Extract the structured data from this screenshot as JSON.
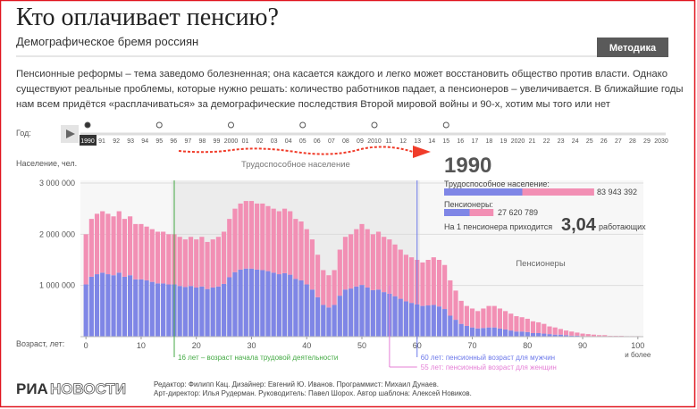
{
  "header": {
    "title": "Кто оплачивает пенсию?",
    "subtitle": "Демографическое бремя россиян",
    "button": "Методика"
  },
  "intro": [
    "Пенсионные реформы – тема заведомо болезненная; она касается каждого и легко может восстановить общество против власти. Однако",
    "существуют реальные проблемы, которые нужно решать: количество работников падает, а пенсионеров – увеличивается. В ближайшие годы",
    "нам всем придётся «расплачиваться» за демографические последствия Второй мировой войны и 90-х, хотим мы того или нет"
  ],
  "timeline": {
    "label": "Год:",
    "selected": 0,
    "years": [
      "1990",
      "91",
      "92",
      "93",
      "94",
      "95",
      "96",
      "97",
      "98",
      "99",
      "2000",
      "01",
      "02",
      "03",
      "04",
      "05",
      "06",
      "07",
      "08",
      "09",
      "2010",
      "11",
      "12",
      "13",
      "14",
      "15",
      "16",
      "17",
      "18",
      "19",
      "2020",
      "21",
      "22",
      "23",
      "24",
      "25",
      "26",
      "27",
      "28",
      "29",
      "2030"
    ]
  },
  "stats": {
    "year": "1990",
    "working_label": "Трудоспособное население:",
    "working": {
      "value": 83943392,
      "label": "83 943 392"
    },
    "pensioners_label": "Пенсионеры:",
    "pensioners": {
      "value": 27620789,
      "label": "27 620 789"
    },
    "ratio_prefix": "На 1 пенсионера приходится",
    "ratio": {
      "value": 3.04,
      "label": "3,04"
    },
    "ratio_suffix": "работающих"
  },
  "chart_data": {
    "type": "bar",
    "stacked": true,
    "y_label": "Население, чел.",
    "x_label": "Возраст, лет:",
    "x": [
      0,
      1,
      2,
      3,
      4,
      5,
      6,
      7,
      8,
      9,
      10,
      11,
      12,
      13,
      14,
      15,
      16,
      17,
      18,
      19,
      20,
      21,
      22,
      23,
      24,
      25,
      26,
      27,
      28,
      29,
      30,
      31,
      32,
      33,
      34,
      35,
      36,
      37,
      38,
      39,
      40,
      41,
      42,
      43,
      44,
      45,
      46,
      47,
      48,
      49,
      50,
      51,
      52,
      53,
      54,
      55,
      56,
      57,
      58,
      59,
      60,
      61,
      62,
      63,
      64,
      65,
      66,
      67,
      68,
      69,
      70,
      71,
      72,
      73,
      74,
      75,
      76,
      77,
      78,
      79,
      80,
      81,
      82,
      83,
      84,
      85,
      86,
      87,
      88,
      89,
      90,
      91,
      92,
      93,
      94,
      95,
      96,
      97,
      98,
      99,
      100
    ],
    "xlim": [
      -1,
      101
    ],
    "xticks": [
      0,
      10,
      20,
      30,
      40,
      50,
      60,
      70,
      80,
      90,
      100
    ],
    "xtick_note": "и более",
    "ylim": [
      0,
      3000000
    ],
    "yticks": [
      {
        "value": 1000000,
        "label": "1 000 000"
      },
      {
        "value": 2000000,
        "label": "2 000 000"
      },
      {
        "value": 3000000,
        "label": "3 000 000"
      }
    ],
    "series": [
      {
        "color": "#7f86e6",
        "values": [
          1020000,
          1170000,
          1220000,
          1250000,
          1220000,
          1200000,
          1250000,
          1170000,
          1200000,
          1120000,
          1120000,
          1100000,
          1070000,
          1040000,
          1040000,
          1020000,
          1020000,
          990000,
          970000,
          990000,
          960000,
          980000,
          930000,
          960000,
          980000,
          1030000,
          1160000,
          1260000,
          1310000,
          1330000,
          1330000,
          1310000,
          1300000,
          1280000,
          1250000,
          1220000,
          1240000,
          1210000,
          1130000,
          1100000,
          1020000,
          920000,
          770000,
          620000,
          570000,
          620000,
          800000,
          920000,
          940000,
          980000,
          1010000,
          960000,
          910000,
          920000,
          870000,
          840000,
          790000,
          740000,
          690000,
          660000,
          630000,
          600000,
          610000,
          620000,
          590000,
          540000,
          410000,
          330000,
          250000,
          210000,
          180000,
          160000,
          170000,
          180000,
          180000,
          160000,
          140000,
          120000,
          100000,
          100000,
          90000,
          70000,
          70000,
          60000,
          50000,
          40000,
          40000,
          30000,
          20000,
          20000,
          10000,
          10000,
          10000,
          10000,
          10000,
          5000,
          5000,
          5000,
          5000,
          5000,
          5000
        ]
      },
      {
        "color": "#f28fb4",
        "values": [
          980000,
          1130000,
          1180000,
          1200000,
          1180000,
          1150000,
          1200000,
          1130000,
          1150000,
          1080000,
          1080000,
          1050000,
          1030000,
          1010000,
          1010000,
          980000,
          980000,
          960000,
          930000,
          960000,
          940000,
          970000,
          920000,
          940000,
          970000,
          1020000,
          1140000,
          1240000,
          1290000,
          1320000,
          1320000,
          1290000,
          1300000,
          1270000,
          1250000,
          1230000,
          1260000,
          1240000,
          1170000,
          1150000,
          1080000,
          980000,
          830000,
          680000,
          630000,
          680000,
          900000,
          1030000,
          1060000,
          1120000,
          1190000,
          1140000,
          1090000,
          1130000,
          1080000,
          1060000,
          1010000,
          960000,
          910000,
          890000,
          870000,
          850000,
          890000,
          930000,
          910000,
          860000,
          690000,
          570000,
          450000,
          390000,
          370000,
          340000,
          380000,
          420000,
          420000,
          390000,
          360000,
          330000,
          300000,
          280000,
          260000,
          230000,
          210000,
          190000,
          150000,
          140000,
          110000,
          90000,
          80000,
          60000,
          50000,
          40000,
          30000,
          20000,
          20000,
          10000,
          10000,
          10000,
          5000,
          5000,
          5000
        ]
      }
    ],
    "region": {
      "from": 16,
      "to": 60,
      "label": "Трудоспособное население",
      "color": "#ececec"
    },
    "pensioners_label": "Пенсионеры",
    "markers": [
      {
        "value": 16,
        "label": "16 лет – возраст начала трудовой деятельности",
        "color": "#44aa44"
      },
      {
        "value": 60,
        "label": "60 лет: пенсионный возраст для мужчин",
        "color": "#6c78ea"
      },
      {
        "value": 55,
        "label": "55 лет: пенсионный возраст для женщин",
        "color": "#e57fd6"
      }
    ]
  },
  "footer": {
    "logo_bold": "РИА",
    "logo_light": "НОВОСТИ",
    "credits": [
      "Редактор: Филипп Кац. Дизайнер: Евгений Ю. Иванов. Программист: Михаил Дунаев.",
      "Арт-директор: Илья Рудерман. Руководитель: Павел Шорох. Автор шаблона: Алексей Новиков."
    ]
  }
}
